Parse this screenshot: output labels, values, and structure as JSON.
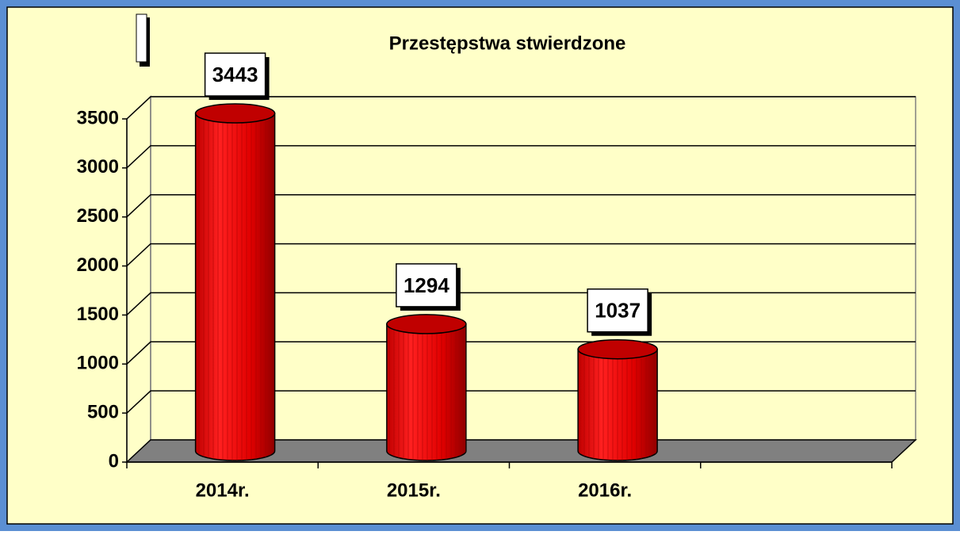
{
  "chart_data": {
    "type": "bar",
    "title": "Przestępstwa stwierdzone",
    "categories": [
      "2014r.",
      "2015r.",
      "2016r.",
      null
    ],
    "values": [
      3443,
      1294,
      1037,
      null
    ],
    "color": "#e00000",
    "ylim": [
      0,
      3500
    ],
    "yticks": [
      0,
      500,
      1000,
      1500,
      2000,
      2500,
      3000,
      3500
    ],
    "grid": true
  }
}
